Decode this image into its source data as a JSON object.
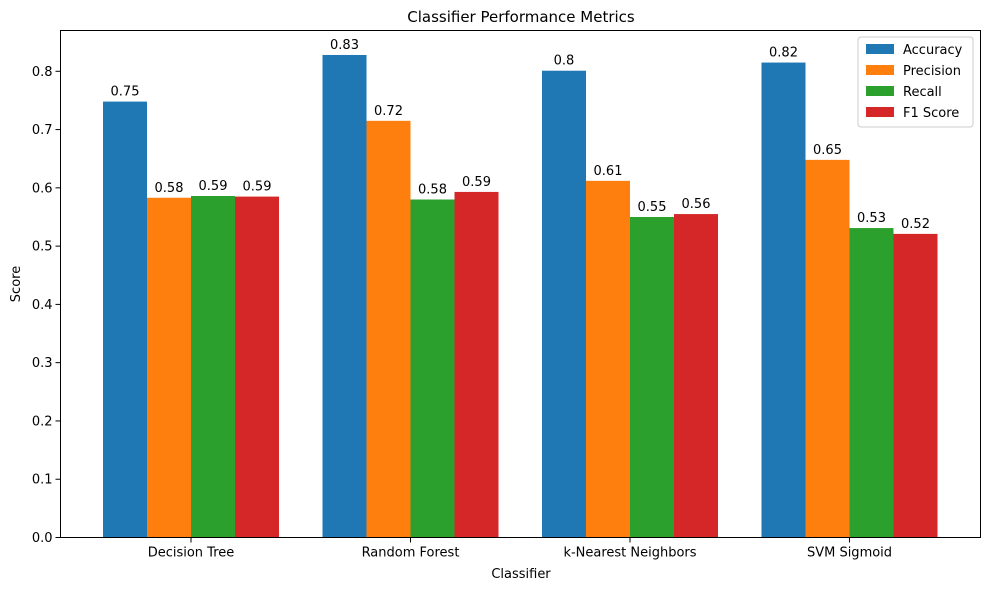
{
  "chart_data": {
    "type": "bar",
    "title": "Classifier Performance Metrics",
    "xlabel": "Classifier",
    "ylabel": "Score",
    "ylim": [
      0,
      0.87
    ],
    "yticks": [
      0.0,
      0.1,
      0.2,
      0.3,
      0.4,
      0.5,
      0.6,
      0.7,
      0.8
    ],
    "ytick_labels": [
      "0.0",
      "0.1",
      "0.2",
      "0.3",
      "0.4",
      "0.5",
      "0.6",
      "0.7",
      "0.8"
    ],
    "categories": [
      "Decision Tree",
      "Random Forest",
      "k-Nearest Neighbors",
      "SVM Sigmoid"
    ],
    "legend_position": "top-right",
    "grid": false,
    "series": [
      {
        "name": "Accuracy",
        "color": "#1f77b4",
        "values": [
          0.748,
          0.828,
          0.801,
          0.815
        ],
        "labels": [
          "0.75",
          "0.83",
          "0.8",
          "0.82"
        ]
      },
      {
        "name": "Precision",
        "color": "#ff7f0e",
        "values": [
          0.583,
          0.715,
          0.612,
          0.648
        ],
        "labels": [
          "0.58",
          "0.72",
          "0.61",
          "0.65"
        ]
      },
      {
        "name": "Recall",
        "color": "#2ca02c",
        "values": [
          0.586,
          0.58,
          0.55,
          0.531
        ],
        "labels": [
          "0.59",
          "0.58",
          "0.55",
          "0.53"
        ]
      },
      {
        "name": "F1 Score",
        "color": "#d62728",
        "values": [
          0.585,
          0.593,
          0.555,
          0.521
        ],
        "labels": [
          "0.59",
          "0.59",
          "0.56",
          "0.52"
        ]
      }
    ]
  }
}
